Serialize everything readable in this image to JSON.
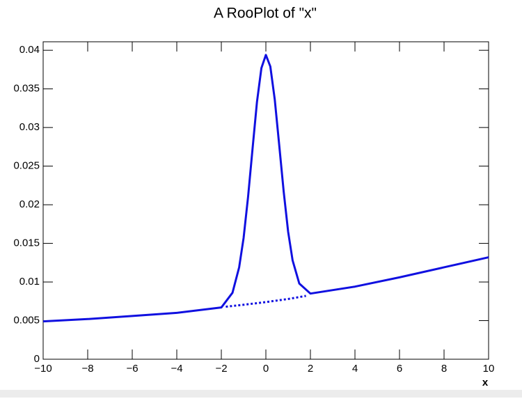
{
  "chart_data": {
    "type": "line",
    "title": "A RooPlot of \"x\"",
    "x_label": "x",
    "series": [
      {
        "color": "#1010e0",
        "style": "solid",
        "x": [
          -10,
          -8,
          -6,
          -4,
          -2,
          -1.5,
          -1.2,
          -1,
          -0.8,
          -0.6,
          -0.4,
          -0.2,
          0,
          0.2,
          0.4,
          0.6,
          0.8,
          1,
          1.2,
          1.5,
          2,
          4,
          6,
          8,
          10
        ],
        "values": [
          0.0049,
          0.0052,
          0.0056,
          0.006,
          0.0067,
          0.0086,
          0.0119,
          0.0157,
          0.021,
          0.0272,
          0.0333,
          0.0377,
          0.0394,
          0.0379,
          0.0336,
          0.0277,
          0.0217,
          0.0165,
          0.0128,
          0.0098,
          0.0085,
          0.0094,
          0.0106,
          0.0119,
          0.0132
        ]
      },
      {
        "color": "#1010e0",
        "style": "dotted",
        "x": [
          -1.8,
          -1,
          0,
          1,
          1.8
        ],
        "values": [
          0.0068,
          0.00705,
          0.0074,
          0.0078,
          0.0082
        ]
      }
    ],
    "xlim": [
      -10,
      10
    ],
    "xticks": [
      {
        "value": -10,
        "label": "−10"
      },
      {
        "value": -8,
        "label": "−8"
      },
      {
        "value": -6,
        "label": "−6"
      },
      {
        "value": -4,
        "label": "−4"
      },
      {
        "value": -2,
        "label": "−2"
      },
      0,
      2,
      4,
      6,
      8,
      10
    ],
    "ylim": [
      0,
      0.0411
    ],
    "yticks": [
      0,
      0.005,
      0.01,
      0.015,
      0.02,
      0.025,
      0.03,
      0.035,
      0.04
    ],
    "grid": false
  }
}
